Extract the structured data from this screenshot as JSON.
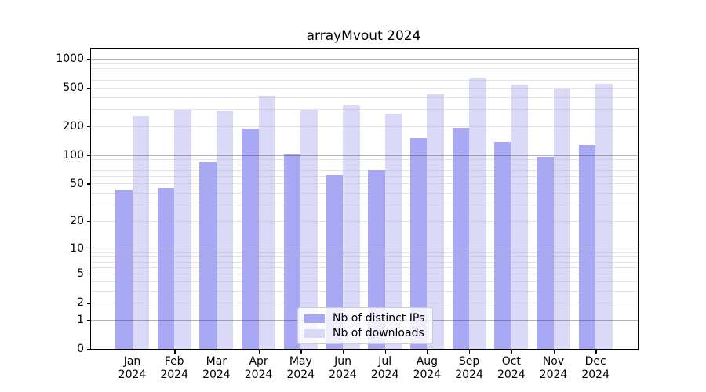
{
  "chart_data": {
    "type": "bar",
    "title": "arrayMvout 2024",
    "categories": [
      "Jan",
      "Feb",
      "Mar",
      "Apr",
      "May",
      "Jun",
      "Jul",
      "Aug",
      "Sep",
      "Oct",
      "Nov",
      "Dec"
    ],
    "x_year_label": "2024",
    "series": [
      {
        "name": "Nb of distinct IPs",
        "color": "#a8a8f5",
        "values": [
          43,
          45,
          85,
          190,
          101,
          62,
          69,
          150,
          192,
          138,
          95,
          128
        ]
      },
      {
        "name": "Nb of downloads",
        "color": "#dadaf8",
        "values": [
          253,
          295,
          288,
          410,
          296,
          330,
          268,
          428,
          625,
          540,
          493,
          548
        ]
      }
    ],
    "yscale": "log1p",
    "ylim": [
      0,
      1270
    ],
    "y_ticks": [
      1000,
      500,
      200,
      100,
      50,
      20,
      10,
      5,
      2,
      1,
      0
    ],
    "grid": "major+minor",
    "legend_position": "lower center inside",
    "colors": {
      "axis": "#000000",
      "major_grid": "#b1b1b1",
      "minor_grid": "#e5e5e5",
      "background": "#ffffff"
    }
  }
}
